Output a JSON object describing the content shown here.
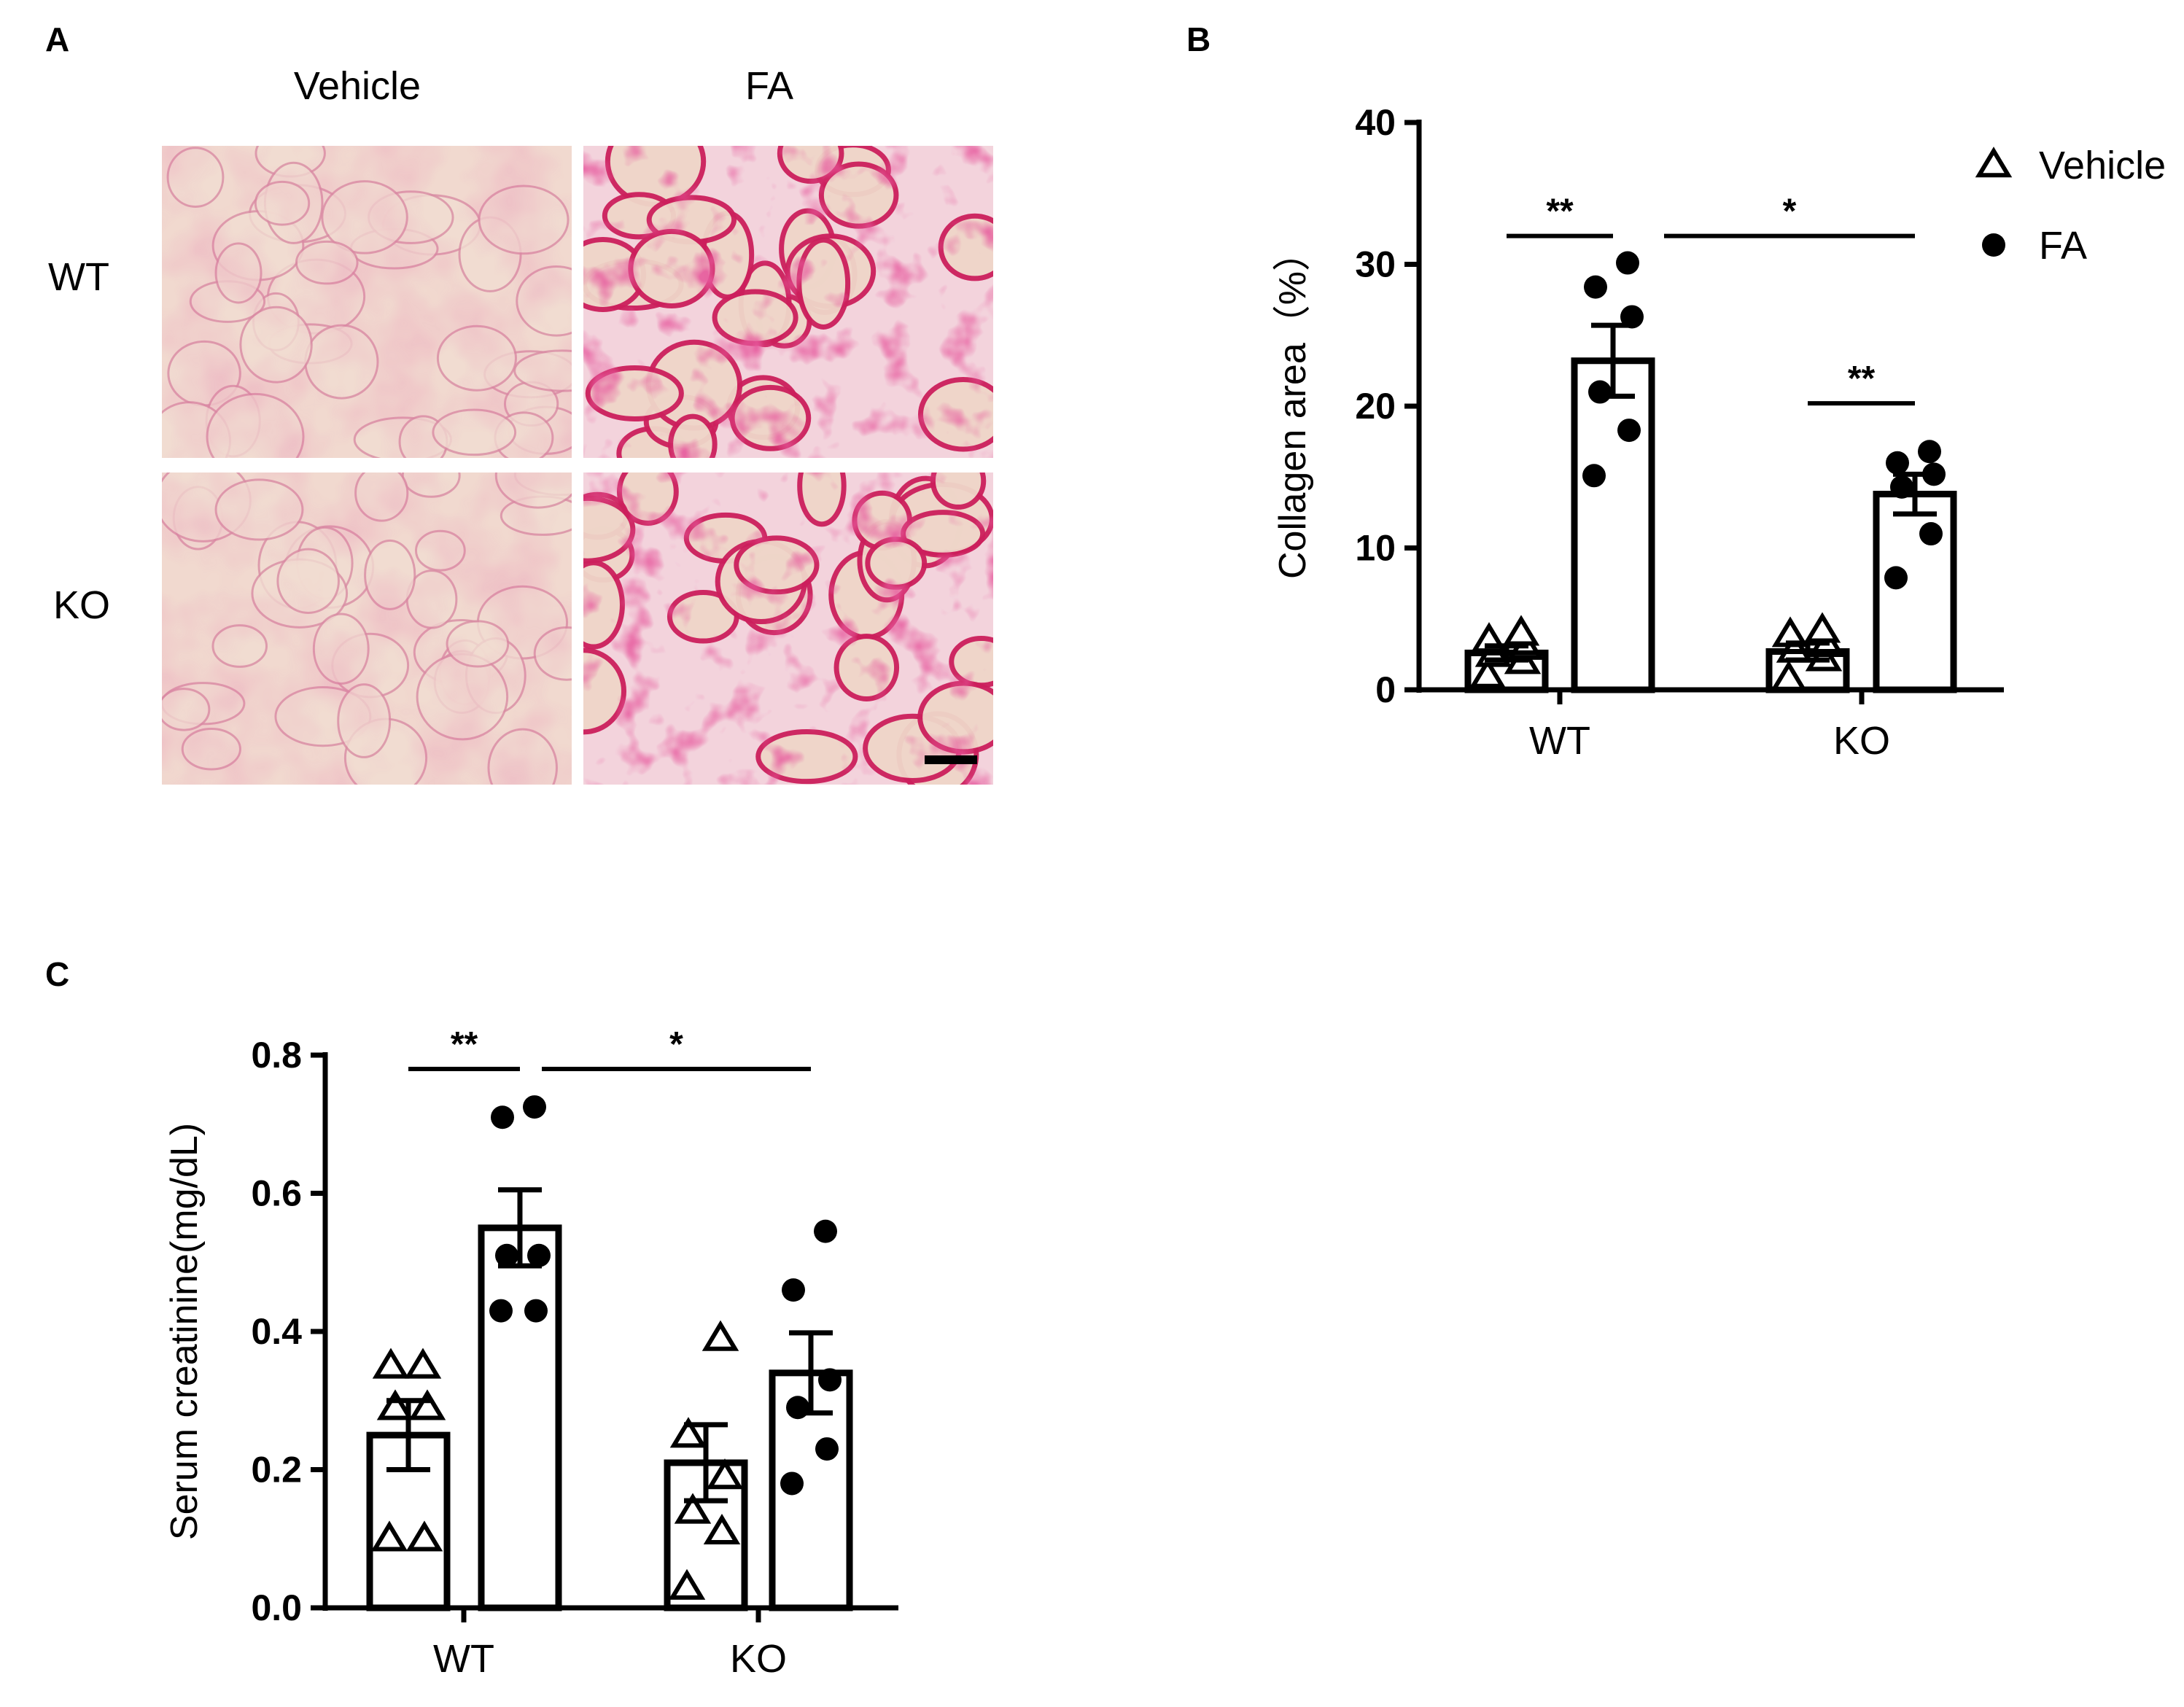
{
  "panels": {
    "a": {
      "letter": "A"
    },
    "b": {
      "letter": "B"
    },
    "c": {
      "letter": "C"
    }
  },
  "histology": {
    "columns": [
      "Vehicle",
      "FA"
    ],
    "rows": [
      "WT",
      "KO"
    ]
  },
  "colors": {
    "vehicle_tissue": "#f1d9cf",
    "fa_tissue": "#e4a6b8",
    "stain": "#cc1f5c",
    "ink": "#000000"
  },
  "chart_data": [
    {
      "type": "bar",
      "panel": "B",
      "categories": [
        "WT",
        "KO"
      ],
      "ylabel": "Collagen area（%）",
      "ylim": [
        0,
        40
      ],
      "yticks": [
        0,
        10,
        20,
        30,
        40
      ],
      "legend": {
        "placement": "top-right",
        "entries": [
          {
            "label": "Vehicle",
            "marker": "triangle-open"
          },
          {
            "label": "FA",
            "marker": "circle-filled"
          }
        ]
      },
      "series": [
        {
          "name": "Vehicle",
          "marker": "triangle-open",
          "means": [
            2.6,
            2.7
          ],
          "sem": [
            0.5,
            0.6
          ],
          "points": [
            [
              1.0,
              2.0,
              2.5,
              3.0,
              3.5,
              4.0
            ],
            [
              0.8,
              2.2,
              2.8,
              3.2,
              3.9,
              4.2
            ]
          ]
        },
        {
          "name": "FA",
          "marker": "circle-filled",
          "means": [
            23.2,
            13.8
          ],
          "sem": [
            2.5,
            1.4
          ],
          "points": [
            [
              15.1,
              18.3,
              21.0,
              26.3,
              28.4,
              30.1
            ],
            [
              7.9,
              11.0,
              14.3,
              15.2,
              16.0,
              16.8
            ]
          ]
        }
      ],
      "significance": [
        {
          "label": "**",
          "from": "WT-Vehicle",
          "to": "WT-FA",
          "y": 32
        },
        {
          "label": "*",
          "from": "WT-FA",
          "to": "KO-FA",
          "y": 32
        },
        {
          "label": "**",
          "from": "KO-Vehicle",
          "to": "KO-FA",
          "y": 20.2
        }
      ]
    },
    {
      "type": "bar",
      "panel": "C",
      "categories": [
        "WT",
        "KO"
      ],
      "ylabel": "Serum creatinine(mg/dL)",
      "ylim": [
        0,
        0.8
      ],
      "yticks": [
        "0.0",
        "0.2",
        "0.4",
        "0.6",
        "0.8"
      ],
      "series": [
        {
          "name": "Vehicle",
          "marker": "triangle-open",
          "means": [
            0.25,
            0.21
          ],
          "sem": [
            0.05,
            0.055
          ],
          "points": [
            [
              0.1,
              0.1,
              0.29,
              0.29,
              0.35,
              0.35
            ],
            [
              0.03,
              0.11,
              0.14,
              0.19,
              0.25,
              0.39
            ]
          ]
        },
        {
          "name": "FA",
          "marker": "circle-filled",
          "means": [
            0.55,
            0.34
          ],
          "sem": [
            0.055,
            0.058
          ],
          "points": [
            [
              0.43,
              0.43,
              0.51,
              0.51,
              0.71,
              0.725
            ],
            [
              0.18,
              0.23,
              0.29,
              0.33,
              0.46,
              0.545
            ]
          ]
        }
      ],
      "significance": [
        {
          "label": "**",
          "from": "WT-Vehicle",
          "to": "WT-FA",
          "y": 0.78
        },
        {
          "label": "*",
          "from": "WT-FA",
          "to": "KO-FA",
          "y": 0.78
        }
      ]
    }
  ]
}
